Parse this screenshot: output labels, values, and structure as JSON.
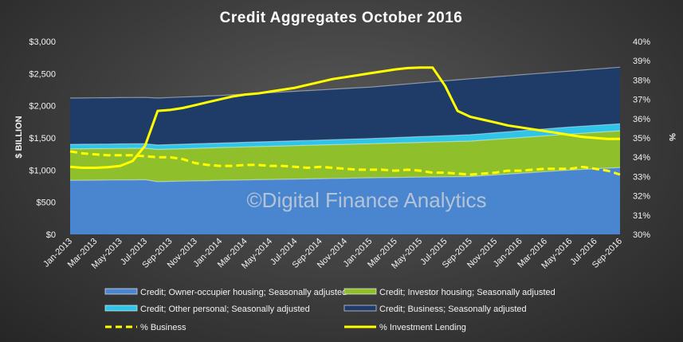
{
  "chart_data": {
    "type": "area",
    "title": "Credit Aggregates October 2016",
    "ylabel": "$ BILLION",
    "y2label": "%",
    "ylim": [
      0,
      3000
    ],
    "y2lim": [
      30,
      40
    ],
    "yticks": [
      "$0",
      "$500",
      "$1,000",
      "$1,500",
      "$2,000",
      "$2,500",
      "$3,000"
    ],
    "y2ticks": [
      "30%",
      "31%",
      "32%",
      "33%",
      "34%",
      "35%",
      "36%",
      "37%",
      "38%",
      "39%",
      "40%"
    ],
    "x_labels": [
      "Jan-2013",
      "Mar-2013",
      "May-2013",
      "Jul-2013",
      "Sep-2013",
      "Nov-2013",
      "Jan-2014",
      "Mar-2014",
      "May-2014",
      "Jul-2014",
      "Sep-2014",
      "Nov-2014",
      "Jan-2015",
      "Mar-2015",
      "May-2015",
      "Jul-2015",
      "Sep-2015",
      "Nov-2015",
      "Jan-2016",
      "Mar-2016",
      "May-2016",
      "Jul-2016",
      "Sep-2016"
    ],
    "x_count": 45,
    "stacked_series": [
      {
        "name": "Credit; Owner-occupier housing; Seasonally adjusted",
        "color": "#4a86d0",
        "points": [
          [
            0,
            840
          ],
          [
            6,
            850
          ],
          [
            7,
            820
          ],
          [
            12,
            840
          ],
          [
            24,
            880
          ],
          [
            32,
            900
          ],
          [
            40,
            1000
          ],
          [
            44,
            1040
          ]
        ]
      },
      {
        "name": "Credit; Investor housing; Seasonally adjusted",
        "color": "#8fbf2a",
        "points": [
          [
            0,
            1330
          ],
          [
            6,
            1340
          ],
          [
            7,
            1320
          ],
          [
            12,
            1350
          ],
          [
            24,
            1410
          ],
          [
            32,
            1450
          ],
          [
            40,
            1560
          ],
          [
            44,
            1610
          ]
        ]
      },
      {
        "name": "Credit; Other personal; Seasonally adjusted",
        "color": "#2fc4e8",
        "points": [
          [
            0,
            1400
          ],
          [
            6,
            1410
          ],
          [
            7,
            1390
          ],
          [
            12,
            1420
          ],
          [
            24,
            1490
          ],
          [
            32,
            1550
          ],
          [
            40,
            1670
          ],
          [
            44,
            1720
          ]
        ]
      },
      {
        "name": "Credit; Business; Seasonally adjusted",
        "color": "#1f3c68",
        "points": [
          [
            0,
            2120
          ],
          [
            6,
            2130
          ],
          [
            7,
            2120
          ],
          [
            12,
            2160
          ],
          [
            24,
            2290
          ],
          [
            32,
            2420
          ],
          [
            40,
            2540
          ],
          [
            44,
            2600
          ]
        ]
      }
    ],
    "line_series": [
      {
        "name": "% Business",
        "color": "#ffff00",
        "dash": true,
        "values": [
          34.3,
          34.2,
          34.15,
          34.1,
          34.1,
          34.1,
          34.05,
          34.0,
          34.0,
          33.9,
          33.7,
          33.6,
          33.55,
          33.55,
          33.6,
          33.6,
          33.55,
          33.55,
          33.5,
          33.45,
          33.5,
          33.45,
          33.4,
          33.35,
          33.35,
          33.35,
          33.3,
          33.35,
          33.3,
          33.2,
          33.2,
          33.15,
          33.1,
          33.15,
          33.2,
          33.3,
          33.3,
          33.35,
          33.4,
          33.4,
          33.4,
          33.5,
          33.4,
          33.3,
          33.1
        ]
      },
      {
        "name": "% Investment Lending",
        "color": "#ffff00",
        "dash": false,
        "values": [
          33.5,
          33.45,
          33.45,
          33.48,
          33.55,
          33.8,
          34.6,
          36.4,
          36.45,
          36.55,
          36.7,
          36.85,
          37.0,
          37.15,
          37.25,
          37.3,
          37.4,
          37.5,
          37.6,
          37.75,
          37.9,
          38.05,
          38.15,
          38.25,
          38.35,
          38.45,
          38.55,
          38.62,
          38.65,
          38.65,
          37.7,
          36.4,
          36.1,
          35.95,
          35.8,
          35.65,
          35.55,
          35.45,
          35.35,
          35.25,
          35.15,
          35.05,
          35.0,
          34.95,
          34.95
        ]
      }
    ],
    "watermark": "©Digital Finance Analytics",
    "legend_position": "bottom"
  }
}
